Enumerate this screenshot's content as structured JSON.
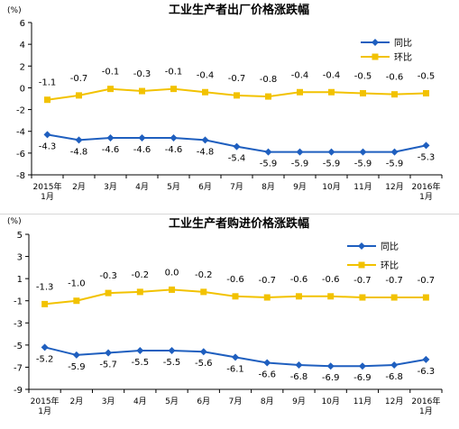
{
  "chart_data": [
    {
      "type": "line",
      "title": "工业生产者出厂价格涨跌幅",
      "unit_label": "(%)",
      "ylim": [
        -8,
        6
      ],
      "yticks": [
        6,
        4,
        2,
        0,
        -2,
        -4,
        -6,
        -8
      ],
      "categories": [
        "2015年 1月",
        "2月",
        "3月",
        "4月",
        "5月",
        "6月",
        "7月",
        "8月",
        "9月",
        "10月",
        "11月",
        "12月",
        "2016年 1月"
      ],
      "grid": false,
      "legend_position": "top-right",
      "series": [
        {
          "name": "同比",
          "color": "#1f5fbf",
          "marker": "diamond",
          "values": [
            -4.3,
            -4.8,
            -4.6,
            -4.6,
            -4.6,
            -4.8,
            -5.4,
            -5.9,
            -5.9,
            -5.9,
            -5.9,
            -5.9,
            -5.3
          ]
        },
        {
          "name": "环比",
          "color": "#f2c200",
          "marker": "square",
          "values": [
            -1.1,
            -0.7,
            -0.1,
            -0.3,
            -0.1,
            -0.4,
            -0.7,
            -0.8,
            -0.4,
            -0.4,
            -0.5,
            -0.6,
            -0.5
          ]
        }
      ]
    },
    {
      "type": "line",
      "title": "工业生产者购进价格涨跌幅",
      "unit_label": "(%)",
      "ylim": [
        -9,
        5
      ],
      "yticks": [
        5,
        3,
        1,
        -1,
        -3,
        -5,
        -7,
        -9
      ],
      "categories": [
        "2015年 1月",
        "2月",
        "3月",
        "4月",
        "5月",
        "6月",
        "7月",
        "8月",
        "9月",
        "10月",
        "11月",
        "12月",
        "2016年 1月"
      ],
      "grid": false,
      "legend_position": "top-right",
      "series": [
        {
          "name": "同比",
          "color": "#1f5fbf",
          "marker": "diamond",
          "values": [
            -5.2,
            -5.9,
            -5.7,
            -5.5,
            -5.5,
            -5.6,
            -6.1,
            -6.6,
            -6.8,
            -6.9,
            -6.9,
            -6.8,
            -6.3
          ]
        },
        {
          "name": "环比",
          "color": "#f2c200",
          "marker": "square",
          "values": [
            -1.3,
            -1.0,
            -0.3,
            -0.2,
            0.0,
            -0.2,
            -0.6,
            -0.7,
            -0.6,
            -0.6,
            -0.7,
            -0.7,
            -0.7
          ]
        }
      ]
    }
  ]
}
